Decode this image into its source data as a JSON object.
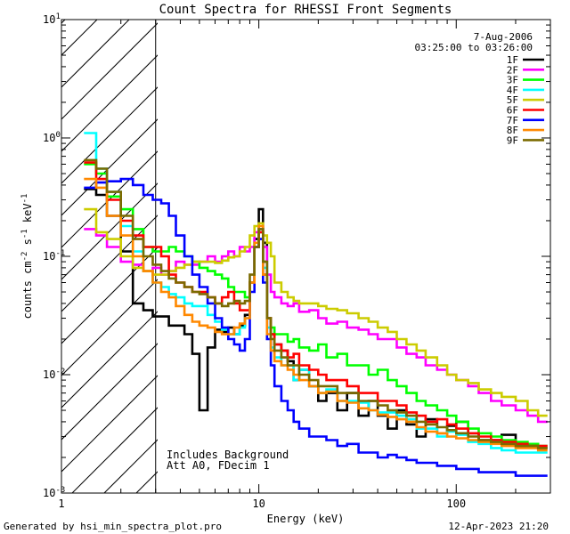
{
  "chart_data": {
    "type": "line",
    "title": "Count Spectra for RHESSI Front Segments",
    "xlabel": "Energy (keV)",
    "ylabel_parts": {
      "main": "counts cm",
      "sup1": "-2",
      "mid": " s",
      "sup2": "-1",
      "unit": " keV",
      "sup3": "-1"
    },
    "xscale": "log",
    "yscale": "log",
    "xlim": [
      1,
      300
    ],
    "ylim": [
      0.001,
      10
    ],
    "x_ticks": [
      {
        "value": 1,
        "label": "1"
      },
      {
        "value": 10,
        "label": "10"
      },
      {
        "value": 100,
        "label": "100"
      }
    ],
    "y_ticks": [
      {
        "value": 0.001,
        "base": "10",
        "exp": "-3"
      },
      {
        "value": 0.01,
        "base": "10",
        "exp": "-2"
      },
      {
        "value": 0.1,
        "base": "10",
        "exp": "-1"
      },
      {
        "value": 1,
        "base": "10",
        "exp": "0"
      },
      {
        "value": 10,
        "base": "10",
        "exp": "1"
      }
    ],
    "hatched_region": {
      "x_from": 1,
      "x_to": 3
    },
    "date": "7-Aug-2006",
    "time_range": "03:25:00 to 03:26:00",
    "annotations": [
      "Includes Background",
      "Att A0, FDecim 1"
    ],
    "series": [
      {
        "name": "1F",
        "color": "#000000",
        "bins": [
          1.3,
          1.5,
          1.7,
          2.0,
          2.3,
          2.6,
          2.9,
          3.2,
          3.5,
          3.8,
          4.2,
          4.6,
          5.0,
          5.5,
          6.0,
          6.5,
          7.0,
          7.5,
          8.0,
          8.5,
          9.0,
          9.5,
          10.0,
          10.5,
          11.0,
          11.5,
          12.0,
          13.0,
          14.0,
          15.0,
          16.0,
          18.0,
          20.0,
          22.0,
          25.0,
          28.0,
          32.0,
          36.0,
          40.0,
          45.0,
          50.0,
          56.0,
          63.0,
          70.0,
          80.0,
          90.0,
          100.0,
          115.0,
          130.0,
          150.0,
          170.0,
          200.0,
          230.0,
          260.0,
          290.0
        ],
        "values": [
          0.37,
          0.33,
          0.22,
          0.11,
          0.04,
          0.035,
          0.031,
          0.031,
          0.026,
          0.026,
          0.022,
          0.015,
          0.005,
          0.017,
          0.024,
          0.023,
          0.025,
          0.022,
          0.026,
          0.032,
          0.06,
          0.14,
          0.25,
          0.13,
          0.03,
          0.022,
          0.018,
          0.016,
          0.013,
          0.009,
          0.011,
          0.008,
          0.006,
          0.007,
          0.005,
          0.007,
          0.0045,
          0.006,
          0.0045,
          0.0035,
          0.005,
          0.0038,
          0.003,
          0.0042,
          0.0032,
          0.0037,
          0.004,
          0.0032,
          0.0028,
          0.0028,
          0.0031,
          0.0025,
          0.0026,
          0.0024
        ]
      },
      {
        "name": "2F",
        "color": "#ff00ff",
        "bins": [
          1.3,
          1.5,
          1.7,
          2.0,
          2.3,
          2.6,
          2.9,
          3.2,
          3.5,
          3.8,
          4.2,
          4.6,
          5.0,
          5.5,
          6.0,
          6.5,
          7.0,
          7.5,
          8.0,
          8.5,
          9.0,
          9.5,
          10.0,
          10.5,
          11.0,
          11.5,
          12.0,
          13.0,
          14.0,
          15.0,
          16.0,
          18.0,
          20.0,
          22.0,
          25.0,
          28.0,
          32.0,
          36.0,
          40.0,
          45.0,
          50.0,
          56.0,
          63.0,
          70.0,
          80.0,
          90.0,
          100.0,
          115.0,
          130.0,
          150.0,
          170.0,
          200.0,
          230.0,
          260.0,
          290.0
        ],
        "values": [
          0.17,
          0.15,
          0.12,
          0.09,
          0.085,
          0.075,
          0.08,
          0.07,
          0.075,
          0.09,
          0.085,
          0.085,
          0.09,
          0.1,
          0.09,
          0.1,
          0.11,
          0.1,
          0.12,
          0.11,
          0.12,
          0.16,
          0.17,
          0.12,
          0.07,
          0.05,
          0.045,
          0.04,
          0.038,
          0.04,
          0.034,
          0.035,
          0.03,
          0.027,
          0.028,
          0.025,
          0.024,
          0.022,
          0.02,
          0.02,
          0.017,
          0.015,
          0.014,
          0.012,
          0.011,
          0.01,
          0.009,
          0.008,
          0.007,
          0.006,
          0.0055,
          0.005,
          0.0045,
          0.004
        ]
      },
      {
        "name": "3F",
        "color": "#00ff00",
        "bins": [
          1.3,
          1.5,
          1.7,
          2.0,
          2.3,
          2.6,
          2.9,
          3.2,
          3.5,
          3.8,
          4.2,
          4.6,
          5.0,
          5.5,
          6.0,
          6.5,
          7.0,
          7.5,
          8.0,
          8.5,
          9.0,
          9.5,
          10.0,
          10.5,
          11.0,
          11.5,
          12.0,
          13.0,
          14.0,
          15.0,
          16.0,
          18.0,
          20.0,
          22.0,
          25.0,
          28.0,
          32.0,
          36.0,
          40.0,
          45.0,
          50.0,
          56.0,
          63.0,
          70.0,
          80.0,
          90.0,
          100.0,
          115.0,
          130.0,
          150.0,
          170.0,
          200.0,
          230.0,
          260.0,
          290.0
        ],
        "values": [
          0.6,
          0.5,
          0.32,
          0.25,
          0.17,
          0.12,
          0.11,
          0.11,
          0.12,
          0.11,
          0.1,
          0.09,
          0.08,
          0.075,
          0.07,
          0.065,
          0.055,
          0.05,
          0.05,
          0.045,
          0.06,
          0.12,
          0.16,
          0.09,
          0.03,
          0.025,
          0.022,
          0.022,
          0.019,
          0.02,
          0.017,
          0.016,
          0.018,
          0.014,
          0.015,
          0.012,
          0.012,
          0.01,
          0.011,
          0.009,
          0.008,
          0.007,
          0.006,
          0.0055,
          0.005,
          0.0045,
          0.004,
          0.0035,
          0.0032,
          0.003,
          0.0028,
          0.0027,
          0.0026,
          0.0025
        ]
      },
      {
        "name": "4F",
        "color": "#00ffff",
        "bins": [
          1.3,
          1.5,
          1.7,
          2.0,
          2.3,
          2.6,
          2.9,
          3.2,
          3.5,
          3.8,
          4.2,
          4.6,
          5.0,
          5.5,
          6.0,
          6.5,
          7.0,
          7.5,
          8.0,
          8.5,
          9.0,
          9.5,
          10.0,
          10.5,
          11.0,
          11.5,
          12.0,
          13.0,
          14.0,
          15.0,
          16.0,
          18.0,
          20.0,
          22.0,
          25.0,
          28.0,
          32.0,
          36.0,
          40.0,
          45.0,
          50.0,
          56.0,
          63.0,
          70.0,
          80.0,
          90.0,
          100.0,
          115.0,
          130.0,
          150.0,
          170.0,
          200.0,
          230.0,
          260.0,
          290.0
        ],
        "values": [
          1.1,
          0.55,
          0.35,
          0.18,
          0.11,
          0.075,
          0.06,
          0.055,
          0.048,
          0.045,
          0.04,
          0.038,
          0.038,
          0.032,
          0.028,
          0.024,
          0.022,
          0.022,
          0.025,
          0.03,
          0.06,
          0.13,
          0.17,
          0.08,
          0.025,
          0.017,
          0.014,
          0.012,
          0.012,
          0.009,
          0.011,
          0.008,
          0.007,
          0.0075,
          0.006,
          0.006,
          0.0058,
          0.005,
          0.0048,
          0.0048,
          0.0045,
          0.0042,
          0.0035,
          0.0035,
          0.003,
          0.0033,
          0.0031,
          0.0027,
          0.0026,
          0.0024,
          0.0023,
          0.0022,
          0.0022,
          0.0022
        ]
      },
      {
        "name": "5F",
        "color": "#cccc00",
        "bins": [
          1.3,
          1.5,
          1.7,
          2.0,
          2.3,
          2.6,
          2.9,
          3.2,
          3.5,
          3.8,
          4.2,
          4.6,
          5.0,
          5.5,
          6.0,
          6.5,
          7.0,
          7.5,
          8.0,
          8.5,
          9.0,
          9.5,
          10.0,
          10.5,
          11.0,
          11.5,
          12.0,
          13.0,
          14.0,
          15.0,
          16.0,
          18.0,
          20.0,
          22.0,
          25.0,
          28.0,
          32.0,
          36.0,
          40.0,
          45.0,
          50.0,
          56.0,
          63.0,
          70.0,
          80.0,
          90.0,
          100.0,
          115.0,
          130.0,
          150.0,
          170.0,
          200.0,
          230.0,
          260.0,
          290.0
        ],
        "values": [
          0.25,
          0.16,
          0.14,
          0.1,
          0.08,
          0.075,
          0.07,
          0.07,
          0.075,
          0.08,
          0.085,
          0.09,
          0.09,
          0.09,
          0.088,
          0.092,
          0.098,
          0.1,
          0.11,
          0.12,
          0.15,
          0.18,
          0.19,
          0.15,
          0.13,
          0.1,
          0.06,
          0.05,
          0.045,
          0.042,
          0.04,
          0.04,
          0.038,
          0.036,
          0.035,
          0.033,
          0.03,
          0.028,
          0.025,
          0.023,
          0.02,
          0.018,
          0.016,
          0.014,
          0.012,
          0.01,
          0.009,
          0.0085,
          0.0075,
          0.007,
          0.0065,
          0.006,
          0.005,
          0.0045
        ]
      },
      {
        "name": "6F",
        "color": "#ff0000",
        "bins": [
          1.3,
          1.5,
          1.7,
          2.0,
          2.3,
          2.6,
          2.9,
          3.2,
          3.5,
          3.8,
          4.2,
          4.6,
          5.0,
          5.5,
          6.0,
          6.5,
          7.0,
          7.5,
          8.0,
          8.5,
          9.0,
          9.5,
          10.0,
          10.5,
          11.0,
          11.5,
          12.0,
          13.0,
          14.0,
          15.0,
          16.0,
          18.0,
          20.0,
          22.0,
          25.0,
          28.0,
          32.0,
          36.0,
          40.0,
          45.0,
          50.0,
          56.0,
          63.0,
          70.0,
          80.0,
          90.0,
          100.0,
          115.0,
          130.0,
          150.0,
          170.0,
          200.0,
          230.0,
          260.0,
          290.0
        ],
        "values": [
          0.62,
          0.45,
          0.3,
          0.2,
          0.15,
          0.12,
          0.12,
          0.1,
          0.07,
          0.06,
          0.055,
          0.05,
          0.05,
          0.045,
          0.04,
          0.045,
          0.05,
          0.04,
          0.035,
          0.035,
          0.06,
          0.12,
          0.16,
          0.07,
          0.03,
          0.022,
          0.018,
          0.016,
          0.014,
          0.015,
          0.012,
          0.011,
          0.01,
          0.009,
          0.009,
          0.008,
          0.007,
          0.007,
          0.006,
          0.006,
          0.0055,
          0.0048,
          0.0045,
          0.004,
          0.0042,
          0.0038,
          0.0035,
          0.0032,
          0.003,
          0.0028,
          0.0027,
          0.0026,
          0.0025,
          0.0025
        ]
      },
      {
        "name": "7F",
        "color": "#0000ff",
        "bins": [
          1.3,
          1.5,
          1.7,
          2.0,
          2.3,
          2.6,
          2.9,
          3.2,
          3.5,
          3.8,
          4.2,
          4.6,
          5.0,
          5.5,
          6.0,
          6.5,
          7.0,
          7.5,
          8.0,
          8.5,
          9.0,
          9.5,
          10.0,
          10.5,
          11.0,
          11.5,
          12.0,
          13.0,
          14.0,
          15.0,
          16.0,
          18.0,
          20.0,
          22.0,
          25.0,
          28.0,
          32.0,
          36.0,
          40.0,
          45.0,
          50.0,
          56.0,
          63.0,
          70.0,
          80.0,
          90.0,
          100.0,
          115.0,
          130.0,
          150.0,
          170.0,
          200.0,
          230.0,
          260.0,
          290.0
        ],
        "values": [
          0.38,
          0.42,
          0.43,
          0.45,
          0.4,
          0.33,
          0.3,
          0.28,
          0.22,
          0.15,
          0.1,
          0.07,
          0.055,
          0.04,
          0.03,
          0.025,
          0.02,
          0.018,
          0.016,
          0.02,
          0.05,
          0.12,
          0.14,
          0.06,
          0.02,
          0.012,
          0.008,
          0.006,
          0.005,
          0.004,
          0.0035,
          0.003,
          0.003,
          0.0028,
          0.0025,
          0.0026,
          0.0022,
          0.0022,
          0.002,
          0.0021,
          0.002,
          0.0019,
          0.0018,
          0.0018,
          0.0017,
          0.0017,
          0.0016,
          0.0016,
          0.0015,
          0.0015,
          0.0015,
          0.0014,
          0.0014,
          0.0014
        ]
      },
      {
        "name": "8F",
        "color": "#ff8800",
        "bins": [
          1.3,
          1.5,
          1.7,
          2.0,
          2.3,
          2.6,
          2.9,
          3.2,
          3.5,
          3.8,
          4.2,
          4.6,
          5.0,
          5.5,
          6.0,
          6.5,
          7.0,
          7.5,
          8.0,
          8.5,
          9.0,
          9.5,
          10.0,
          10.5,
          11.0,
          11.5,
          12.0,
          13.0,
          14.0,
          15.0,
          16.0,
          18.0,
          20.0,
          22.0,
          25.0,
          28.0,
          32.0,
          36.0,
          40.0,
          45.0,
          50.0,
          56.0,
          63.0,
          70.0,
          80.0,
          90.0,
          100.0,
          115.0,
          130.0,
          150.0,
          170.0,
          200.0,
          230.0,
          260.0,
          290.0
        ],
        "values": [
          0.45,
          0.38,
          0.22,
          0.15,
          0.1,
          0.075,
          0.06,
          0.05,
          0.045,
          0.038,
          0.032,
          0.028,
          0.026,
          0.025,
          0.023,
          0.022,
          0.022,
          0.025,
          0.027,
          0.03,
          0.06,
          0.13,
          0.18,
          0.07,
          0.022,
          0.016,
          0.013,
          0.012,
          0.011,
          0.01,
          0.009,
          0.008,
          0.007,
          0.0072,
          0.006,
          0.0058,
          0.0052,
          0.005,
          0.0046,
          0.0044,
          0.0042,
          0.004,
          0.0036,
          0.0033,
          0.0032,
          0.003,
          0.0029,
          0.0028,
          0.0027,
          0.0026,
          0.0025,
          0.0024,
          0.0024,
          0.0023
        ]
      },
      {
        "name": "9F",
        "color": "#7b6a00",
        "bins": [
          1.3,
          1.5,
          1.7,
          2.0,
          2.3,
          2.6,
          2.9,
          3.2,
          3.5,
          3.8,
          4.2,
          4.6,
          5.0,
          5.5,
          6.0,
          6.5,
          7.0,
          7.5,
          8.0,
          8.5,
          9.0,
          9.5,
          10.0,
          10.5,
          11.0,
          11.5,
          12.0,
          13.0,
          14.0,
          15.0,
          16.0,
          18.0,
          20.0,
          22.0,
          25.0,
          28.0,
          32.0,
          36.0,
          40.0,
          45.0,
          50.0,
          56.0,
          63.0,
          70.0,
          80.0,
          90.0,
          100.0,
          115.0,
          130.0,
          150.0,
          170.0,
          200.0,
          230.0,
          260.0,
          290.0
        ],
        "values": [
          0.65,
          0.55,
          0.35,
          0.22,
          0.14,
          0.1,
          0.085,
          0.075,
          0.065,
          0.06,
          0.055,
          0.05,
          0.048,
          0.045,
          0.04,
          0.038,
          0.04,
          0.042,
          0.04,
          0.042,
          0.07,
          0.12,
          0.17,
          0.09,
          0.03,
          0.02,
          0.016,
          0.014,
          0.012,
          0.012,
          0.01,
          0.009,
          0.008,
          0.008,
          0.007,
          0.007,
          0.006,
          0.006,
          0.0055,
          0.005,
          0.0048,
          0.0045,
          0.004,
          0.0038,
          0.0036,
          0.0034,
          0.0032,
          0.003,
          0.0028,
          0.0027,
          0.0026,
          0.0025,
          0.0025,
          0.0024
        ]
      }
    ]
  },
  "footer": {
    "generated_by": "Generated by hsi_min_spectra_plot.pro",
    "timestamp": "12-Apr-2023 21:20"
  }
}
